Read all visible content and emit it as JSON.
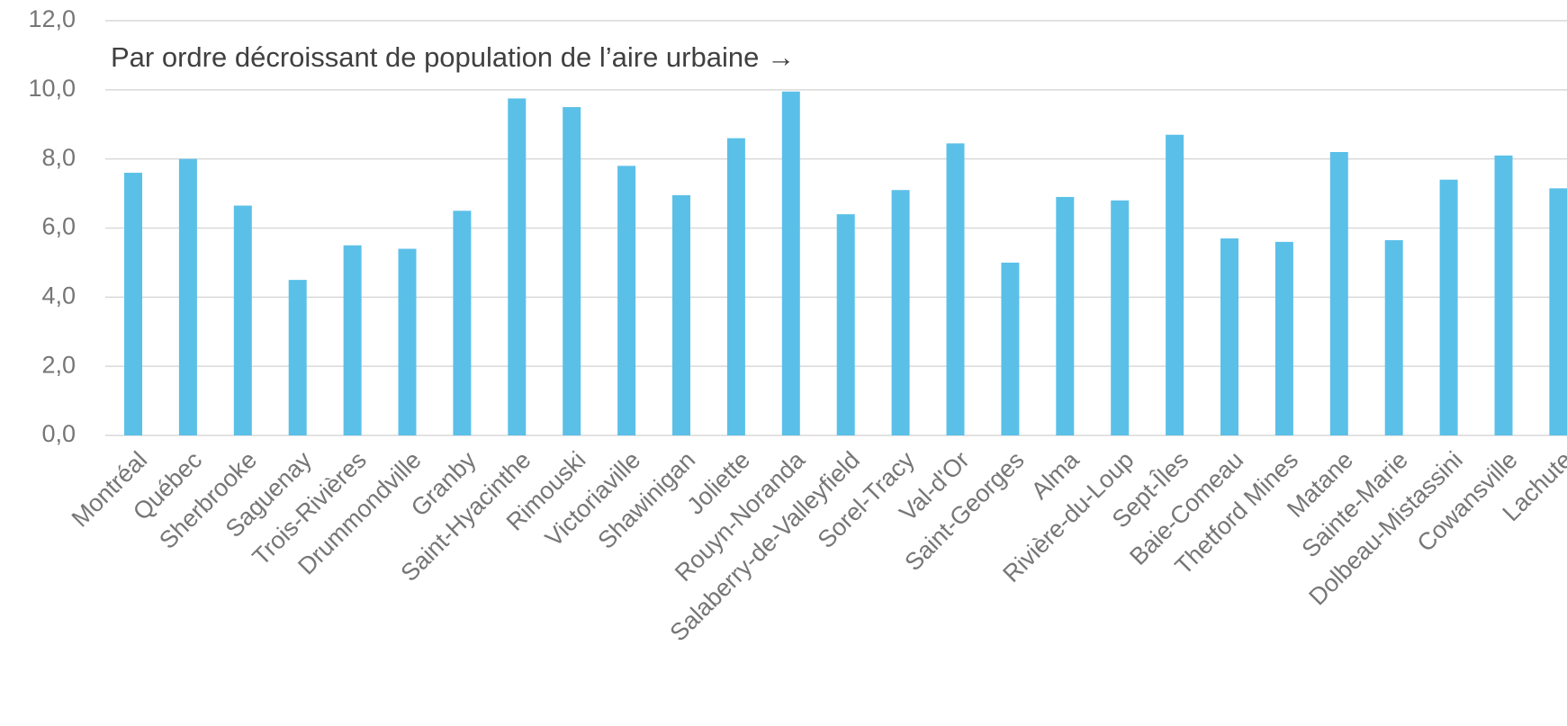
{
  "chart_data": {
    "type": "bar",
    "annotation": "Par ordre décroissant de population de l’aire urbaine →",
    "categories": [
      "Montréal",
      "Québec",
      "Sherbrooke",
      "Saguenay",
      "Trois-Rivières",
      "Drummondville",
      "Granby",
      "Saint-Hyacinthe",
      "Rimouski",
      "Victoriaville",
      "Shawinigan",
      "Joliette",
      "Rouyn-Noranda",
      "Salaberry-de-Valleyfield",
      "Sorel-Tracy",
      "Val-d'Or",
      "Saint-Georges",
      "Alma",
      "Rivière-du-Loup",
      "Sept-Îles",
      "Baie-Comeau",
      "Thetford Mines",
      "Matane",
      "Sainte-Marie",
      "Dolbeau-Mistassini",
      "Cowansville",
      "Lachute"
    ],
    "values": [
      7.6,
      8.0,
      6.65,
      4.5,
      5.5,
      5.4,
      6.5,
      9.75,
      9.5,
      7.8,
      6.95,
      8.6,
      9.95,
      6.4,
      7.1,
      8.45,
      5.0,
      6.9,
      6.8,
      8.7,
      5.7,
      5.6,
      8.2,
      5.65,
      7.4,
      8.1,
      7.15
    ],
    "color": "#5bc0e8",
    "ylim": [
      0,
      12
    ],
    "yticks": [
      {
        "value": 0,
        "label": "0,0"
      },
      {
        "value": 2,
        "label": "2,0"
      },
      {
        "value": 4,
        "label": "4,0"
      },
      {
        "value": 6,
        "label": "6,0"
      },
      {
        "value": 8,
        "label": "8,0"
      },
      {
        "value": 10,
        "label": "10,0"
      },
      {
        "value": 12,
        "label": "12,0"
      }
    ],
    "grid": true
  }
}
